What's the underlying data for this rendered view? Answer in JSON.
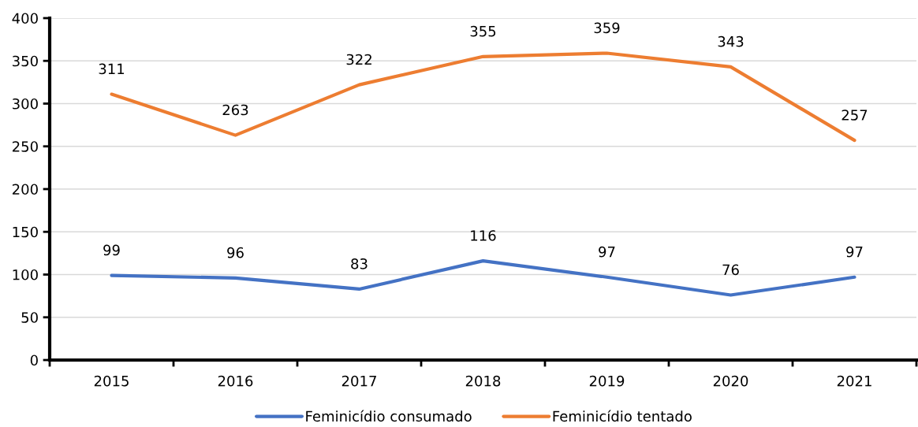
{
  "chart_data": {
    "type": "line",
    "categories": [
      "2015",
      "2016",
      "2017",
      "2018",
      "2019",
      "2020",
      "2021"
    ],
    "series": [
      {
        "name": "Feminicídio consumado",
        "color": "#4472c4",
        "values": [
          99,
          96,
          83,
          116,
          97,
          76,
          97
        ]
      },
      {
        "name": "Feminicídio tentado",
        "color": "#ed7d31",
        "values": [
          311,
          263,
          322,
          355,
          359,
          343,
          257
        ]
      }
    ],
    "ylim": [
      0,
      400
    ],
    "yticks": [
      0,
      50,
      100,
      150,
      200,
      250,
      300,
      350,
      400
    ],
    "grid": "y",
    "legend": "bottom",
    "data_labels": true,
    "line_style": "solid"
  }
}
